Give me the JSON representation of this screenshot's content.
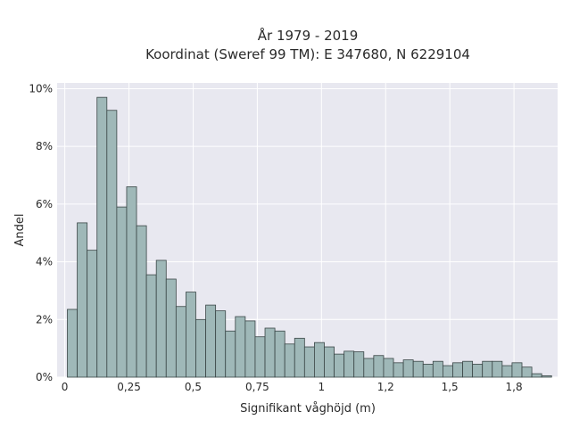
{
  "chart_data": {
    "type": "bar",
    "title_line1": "År 1979 - 2019",
    "title_line2": "Koordinat (Sweref 99 TM): E 347680, N 6229104",
    "xlabel": "Signifikant våghöjd (m)",
    "ylabel": "Andel",
    "xlim": [
      -0.03,
      1.92
    ],
    "ylim": [
      0,
      10.2
    ],
    "bin_width": 0.0385,
    "bin_start": 0.01,
    "x_ticks": [
      {
        "value": 0,
        "label": "0"
      },
      {
        "value": 0.25,
        "label": "0,25"
      },
      {
        "value": 0.5,
        "label": "0,5"
      },
      {
        "value": 0.75,
        "label": "0,75"
      },
      {
        "value": 1,
        "label": "1"
      },
      {
        "value": 1.25,
        "label": "1,2"
      },
      {
        "value": 1.5,
        "label": "1,5"
      },
      {
        "value": 1.75,
        "label": "1,8"
      }
    ],
    "y_ticks": [
      {
        "value": 0,
        "label": "0%"
      },
      {
        "value": 2,
        "label": "2%"
      },
      {
        "value": 4,
        "label": "4%"
      },
      {
        "value": 6,
        "label": "6%"
      },
      {
        "value": 8,
        "label": "8%"
      },
      {
        "value": 10,
        "label": "10%"
      }
    ],
    "values": [
      2.35,
      5.35,
      4.4,
      9.7,
      9.25,
      5.9,
      6.6,
      5.25,
      3.55,
      4.05,
      3.4,
      2.45,
      2.95,
      2.0,
      2.5,
      2.3,
      1.6,
      2.1,
      1.95,
      1.4,
      1.7,
      1.6,
      1.15,
      1.35,
      1.05,
      1.2,
      1.05,
      0.8,
      0.9,
      0.88,
      0.65,
      0.75,
      0.65,
      0.5,
      0.6,
      0.55,
      0.45,
      0.55,
      0.4,
      0.5,
      0.55,
      0.45,
      0.55,
      0.55,
      0.4,
      0.5,
      0.35,
      0.12,
      0.05
    ],
    "colors": {
      "plot_bg": "#e8e8f0",
      "grid": "#ffffff",
      "bar_fill": "#9fb8b8",
      "bar_stroke": "#3a4646"
    }
  }
}
